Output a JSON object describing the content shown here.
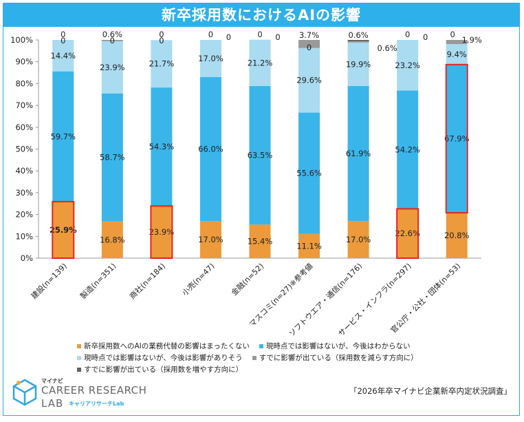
{
  "title": "新卒採用数におけるAIの影響",
  "source": "「2026年卒マイナビ企業新卒内定状況調査」",
  "logo": {
    "small": "マイナビ",
    "main": "CAREER RESEARCH",
    "lab": "LAB",
    "kana": "キャリアリサーチLab"
  },
  "colors": {
    "title_bg": "#2eb0ea",
    "s1": "#ec9a3b",
    "s2": "#3ab5ea",
    "s3": "#a9dbf1",
    "s4": "#999999",
    "s5": "#606060",
    "highlight": "#e52420"
  },
  "chart_data": {
    "type": "bar",
    "stacked": true,
    "ylim": [
      0,
      100
    ],
    "yticks": [
      "0%",
      "10%",
      "20%",
      "30%",
      "40%",
      "50%",
      "60%",
      "70%",
      "80%",
      "90%",
      "100%"
    ],
    "categories": [
      "建設(n=139)",
      "製造(n=351)",
      "商社(n=184)",
      "小売(n=47)",
      "金融(n=52)",
      "マスコミ(n=27)※参考値",
      "ソフトウエア・通信(n=176)",
      "サービス・インフラ(n=297)",
      "官公庁・公社・団体(n=53)"
    ],
    "series": [
      {
        "name": "新卒採用数へのAIの業務代替の影響はまったくない",
        "values": [
          25.9,
          16.8,
          23.9,
          17.0,
          15.4,
          11.1,
          17.0,
          22.6,
          20.8
        ],
        "labels": [
          "25.9%",
          "16.8%",
          "23.9%",
          "17.0%",
          "15.4%",
          "11.1%",
          "17.0%",
          "22.6%",
          "20.8%"
        ]
      },
      {
        "name": "現時点では影響はないが、今後はわからない",
        "values": [
          59.7,
          58.7,
          54.3,
          66.0,
          63.5,
          55.6,
          61.9,
          54.2,
          67.9
        ],
        "labels": [
          "59.7%",
          "58.7%",
          "54.3%",
          "66.0%",
          "63.5%",
          "55.6%",
          "61.9%",
          "54.2%",
          "67.9%"
        ]
      },
      {
        "name": "現時点では影響はないが、今後は影響がありそう",
        "values": [
          14.4,
          23.9,
          21.7,
          17.0,
          21.2,
          29.6,
          19.9,
          23.2,
          9.4
        ],
        "labels": [
          "14.4%",
          "23.9%",
          "21.7%",
          "17.0%",
          "21.2%",
          "29.6%",
          "19.9%",
          "23.2%",
          "9.4%"
        ]
      },
      {
        "name": "すでに影響が出ている（採用数を減らす方向に）",
        "values": [
          0,
          0.6,
          0,
          0,
          0,
          3.7,
          0.6,
          0,
          1.9
        ],
        "labels": [
          "0",
          "0.6%",
          "0",
          "0",
          "0",
          "3.7%",
          "0.6%",
          "0",
          "1.9%"
        ]
      },
      {
        "name": "すでに影響が出ている（採用数を増やす方向に）",
        "values": [
          0,
          0,
          0,
          0,
          0,
          0,
          0.6,
          0,
          0
        ],
        "labels": [
          "0",
          "0",
          "0",
          "0",
          "0",
          "0",
          "0.6%",
          "0",
          "0"
        ]
      }
    ],
    "highlights": [
      {
        "category_index": 0,
        "series": [
          0
        ]
      },
      {
        "category_index": 2,
        "series": [
          0
        ]
      },
      {
        "category_index": 7,
        "series": [
          0
        ]
      },
      {
        "category_index": 8,
        "series": [
          1
        ]
      }
    ]
  },
  "legend": [
    {
      "label": "新卒採用数へのAIの業務代替の影響はまったくない",
      "color_key": "s1"
    },
    {
      "label": "現時点では影響はないが、今後はわからない",
      "color_key": "s2"
    },
    {
      "label": "現時点では影響はないが、今後は影響がありそう",
      "color_key": "s3"
    },
    {
      "label": "すでに影響が出ている（採用数を減らす方向に）",
      "color_key": "s4"
    },
    {
      "label": "すでに影響が出ている（採用数を増やす方向に）",
      "color_key": "s5"
    }
  ]
}
